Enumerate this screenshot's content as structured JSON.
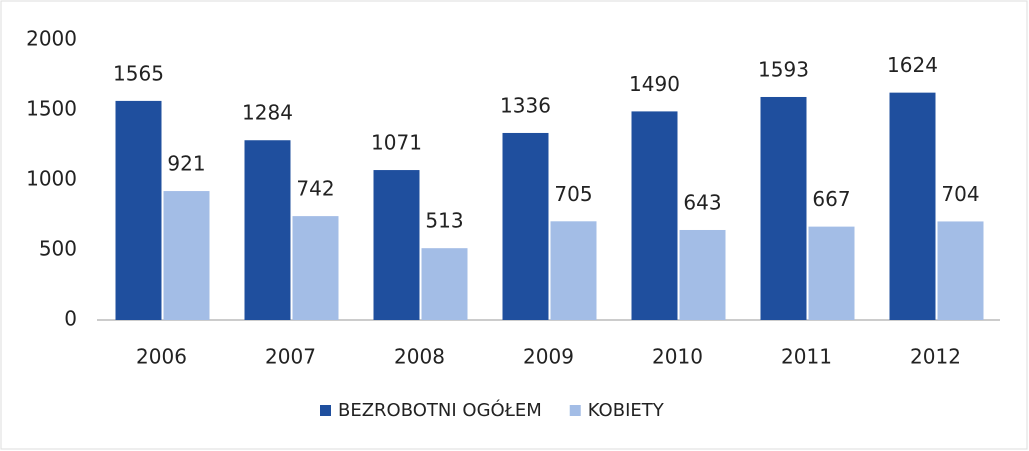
{
  "chart_data": {
    "type": "bar",
    "categories": [
      "2006",
      "2007",
      "2008",
      "2009",
      "2010",
      "2011",
      "2012"
    ],
    "series": [
      {
        "name": "BEZROBOTNI OGÓŁEM",
        "color": "#1f4f9e",
        "values": [
          1565,
          1284,
          1071,
          1336,
          1490,
          1593,
          1624
        ]
      },
      {
        "name": "KOBIETY",
        "color": "#a3bde6",
        "values": [
          921,
          742,
          513,
          705,
          643,
          667,
          704
        ]
      }
    ],
    "ylim": [
      0,
      2000
    ],
    "yticks": [
      0,
      500,
      1000,
      1500,
      2000
    ],
    "grid": false,
    "legend": "bottom"
  }
}
